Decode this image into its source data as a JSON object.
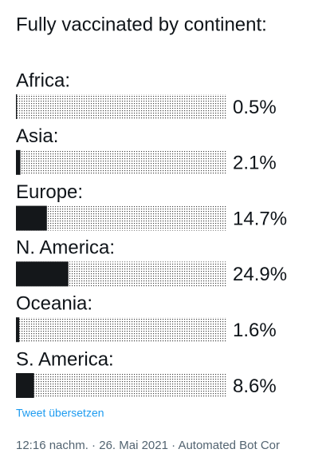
{
  "chart_data": {
    "type": "bar",
    "title": "Fully vaccinated by continent:",
    "categories": [
      "Africa:",
      "Asia:",
      "Europe:",
      "N. America:",
      "Oceania:",
      "S. America:"
    ],
    "values": [
      0.5,
      2.1,
      14.7,
      24.9,
      1.6,
      8.6
    ],
    "value_labels": [
      "0.5%",
      "2.1%",
      "14.7%",
      "24.9%",
      "1.6%",
      "8.6%"
    ],
    "xlim": [
      0,
      100
    ],
    "color": "#14171a"
  },
  "tweet": {
    "translate": "Tweet übersetzen",
    "meta": "12:16 nachm. · 26. Mai 2021 · Automated Bot Cor"
  }
}
